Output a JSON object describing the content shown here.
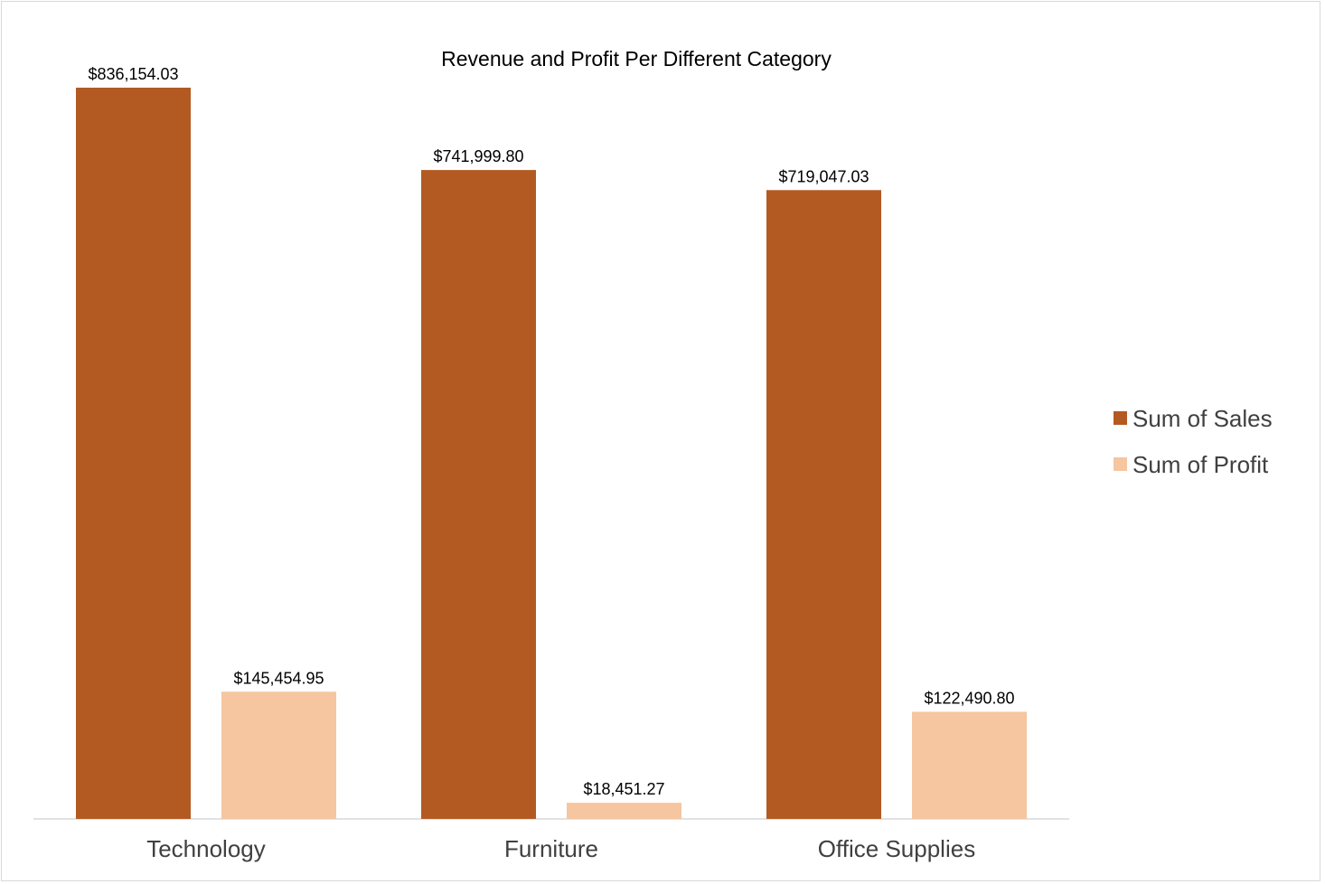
{
  "chart_data": {
    "type": "bar",
    "title": "Revenue and Profit Per Different Category",
    "categories": [
      "Technology",
      "Furniture",
      "Office Supplies"
    ],
    "series": [
      {
        "name": "Sum of Sales",
        "color": "#b35a22",
        "values": [
          836154.03,
          741999.8,
          719047.03
        ],
        "labels": [
          "$836,154.03",
          "$741,999.80",
          "$719,047.03"
        ]
      },
      {
        "name": "Sum of Profit",
        "color": "#f5c6a0",
        "values": [
          145454.95,
          18451.27,
          122490.8
        ],
        "labels": [
          "$145,454.95",
          "$18,451.27",
          "$122,490.80"
        ]
      }
    ],
    "ylim": [
      0,
      836154.03
    ],
    "grid": false,
    "legend": "right",
    "xlabel": "",
    "ylabel": ""
  }
}
